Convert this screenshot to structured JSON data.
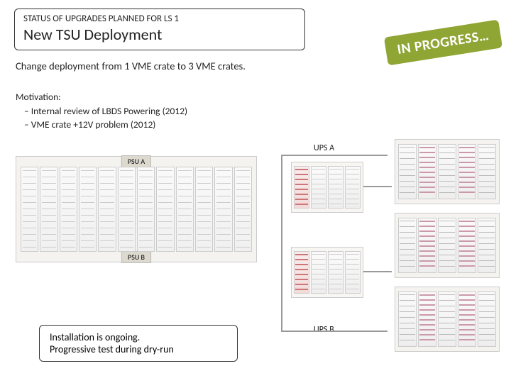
{
  "header": {
    "small": "STATUS OF UPGRADES PLANNED FOR LS 1",
    "large": "New TSU Deployment"
  },
  "subtitle": "Change deployment from 1 VME crate to 3 VME crates.",
  "motivation": {
    "title": "Motivation:",
    "items": [
      "Internal review of LBDS Powering (2012)",
      "VME crate +12V problem (2012)"
    ]
  },
  "status_badge": "IN PROGRESS…",
  "install_box": {
    "line1": "Installation is ongoing.",
    "line2": "Progressive test during dry-run"
  },
  "labels": {
    "psu_a": "PSU A",
    "psu_b": "PSU B",
    "ups_a": "UPS A",
    "ups_b": "UPS B"
  },
  "colors": {
    "badge_bg": "#8fa534",
    "badge_fg": "#ffffff",
    "box_border": "#333333",
    "crate_bg": "#f5f3ef"
  },
  "layout": {
    "left_crate_cards": 12,
    "mid_crate_cards": 4,
    "right_crate_cards": 5
  }
}
